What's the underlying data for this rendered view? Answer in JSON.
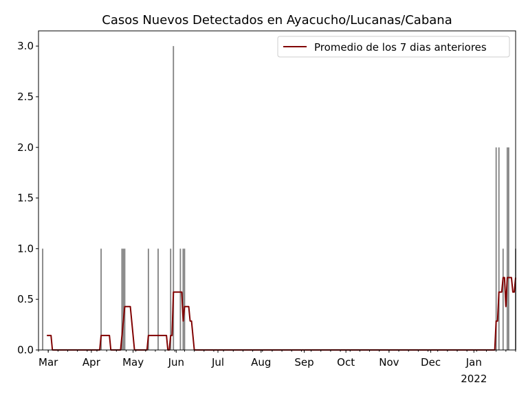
{
  "chart_data": {
    "type": "bar",
    "title": "Casos Nuevos Detectados en Ayacucho/Lucanas/Cabana",
    "xlabel": "",
    "ylabel": "",
    "xlim": [
      "2021-02-22",
      "2022-01-31"
    ],
    "ylim": [
      0,
      3.15
    ],
    "yticks": [
      0.0,
      0.5,
      1.0,
      1.5,
      2.0,
      2.5,
      3.0
    ],
    "ytick_labels": [
      "0.0",
      "0.5",
      "1.0",
      "1.5",
      "2.0",
      "2.5",
      "3.0"
    ],
    "xticks": [
      {
        "date": "2021-03-01",
        "label": "Mar"
      },
      {
        "date": "2021-04-01",
        "label": "Apr"
      },
      {
        "date": "2021-05-01",
        "label": "May"
      },
      {
        "date": "2021-06-01",
        "label": "Jun"
      },
      {
        "date": "2021-07-01",
        "label": "Jul"
      },
      {
        "date": "2021-08-01",
        "label": "Aug"
      },
      {
        "date": "2021-09-01",
        "label": "Sep"
      },
      {
        "date": "2021-10-01",
        "label": "Oct"
      },
      {
        "date": "2021-11-01",
        "label": "Nov"
      },
      {
        "date": "2021-12-01",
        "label": "Dec"
      },
      {
        "date": "2022-01-01",
        "label": "Jan",
        "sublabel": "2022"
      }
    ],
    "bar_color": "#808080",
    "bars": [
      {
        "date": "2021-02-25",
        "value": 1
      },
      {
        "date": "2021-04-08",
        "value": 1
      },
      {
        "date": "2021-04-23",
        "value": 1
      },
      {
        "date": "2021-04-24",
        "value": 1
      },
      {
        "date": "2021-04-25",
        "value": 1
      },
      {
        "date": "2021-05-12",
        "value": 1
      },
      {
        "date": "2021-05-19",
        "value": 1
      },
      {
        "date": "2021-05-28",
        "value": 1
      },
      {
        "date": "2021-05-30",
        "value": 3
      },
      {
        "date": "2021-06-04",
        "value": 1
      },
      {
        "date": "2021-06-06",
        "value": 1
      },
      {
        "date": "2021-06-07",
        "value": 1
      },
      {
        "date": "2022-01-17",
        "value": 2
      },
      {
        "date": "2022-01-19",
        "value": 2
      },
      {
        "date": "2022-01-22",
        "value": 1
      },
      {
        "date": "2022-01-25",
        "value": 2
      },
      {
        "date": "2022-01-26",
        "value": 2
      },
      {
        "date": "2022-01-31",
        "value": 1
      }
    ],
    "series": [
      {
        "name": "Promedio de los 7 dias anteriores",
        "type": "line",
        "window_days": 7,
        "color": "#800000"
      }
    ],
    "legend": "top-right",
    "grid": false
  }
}
